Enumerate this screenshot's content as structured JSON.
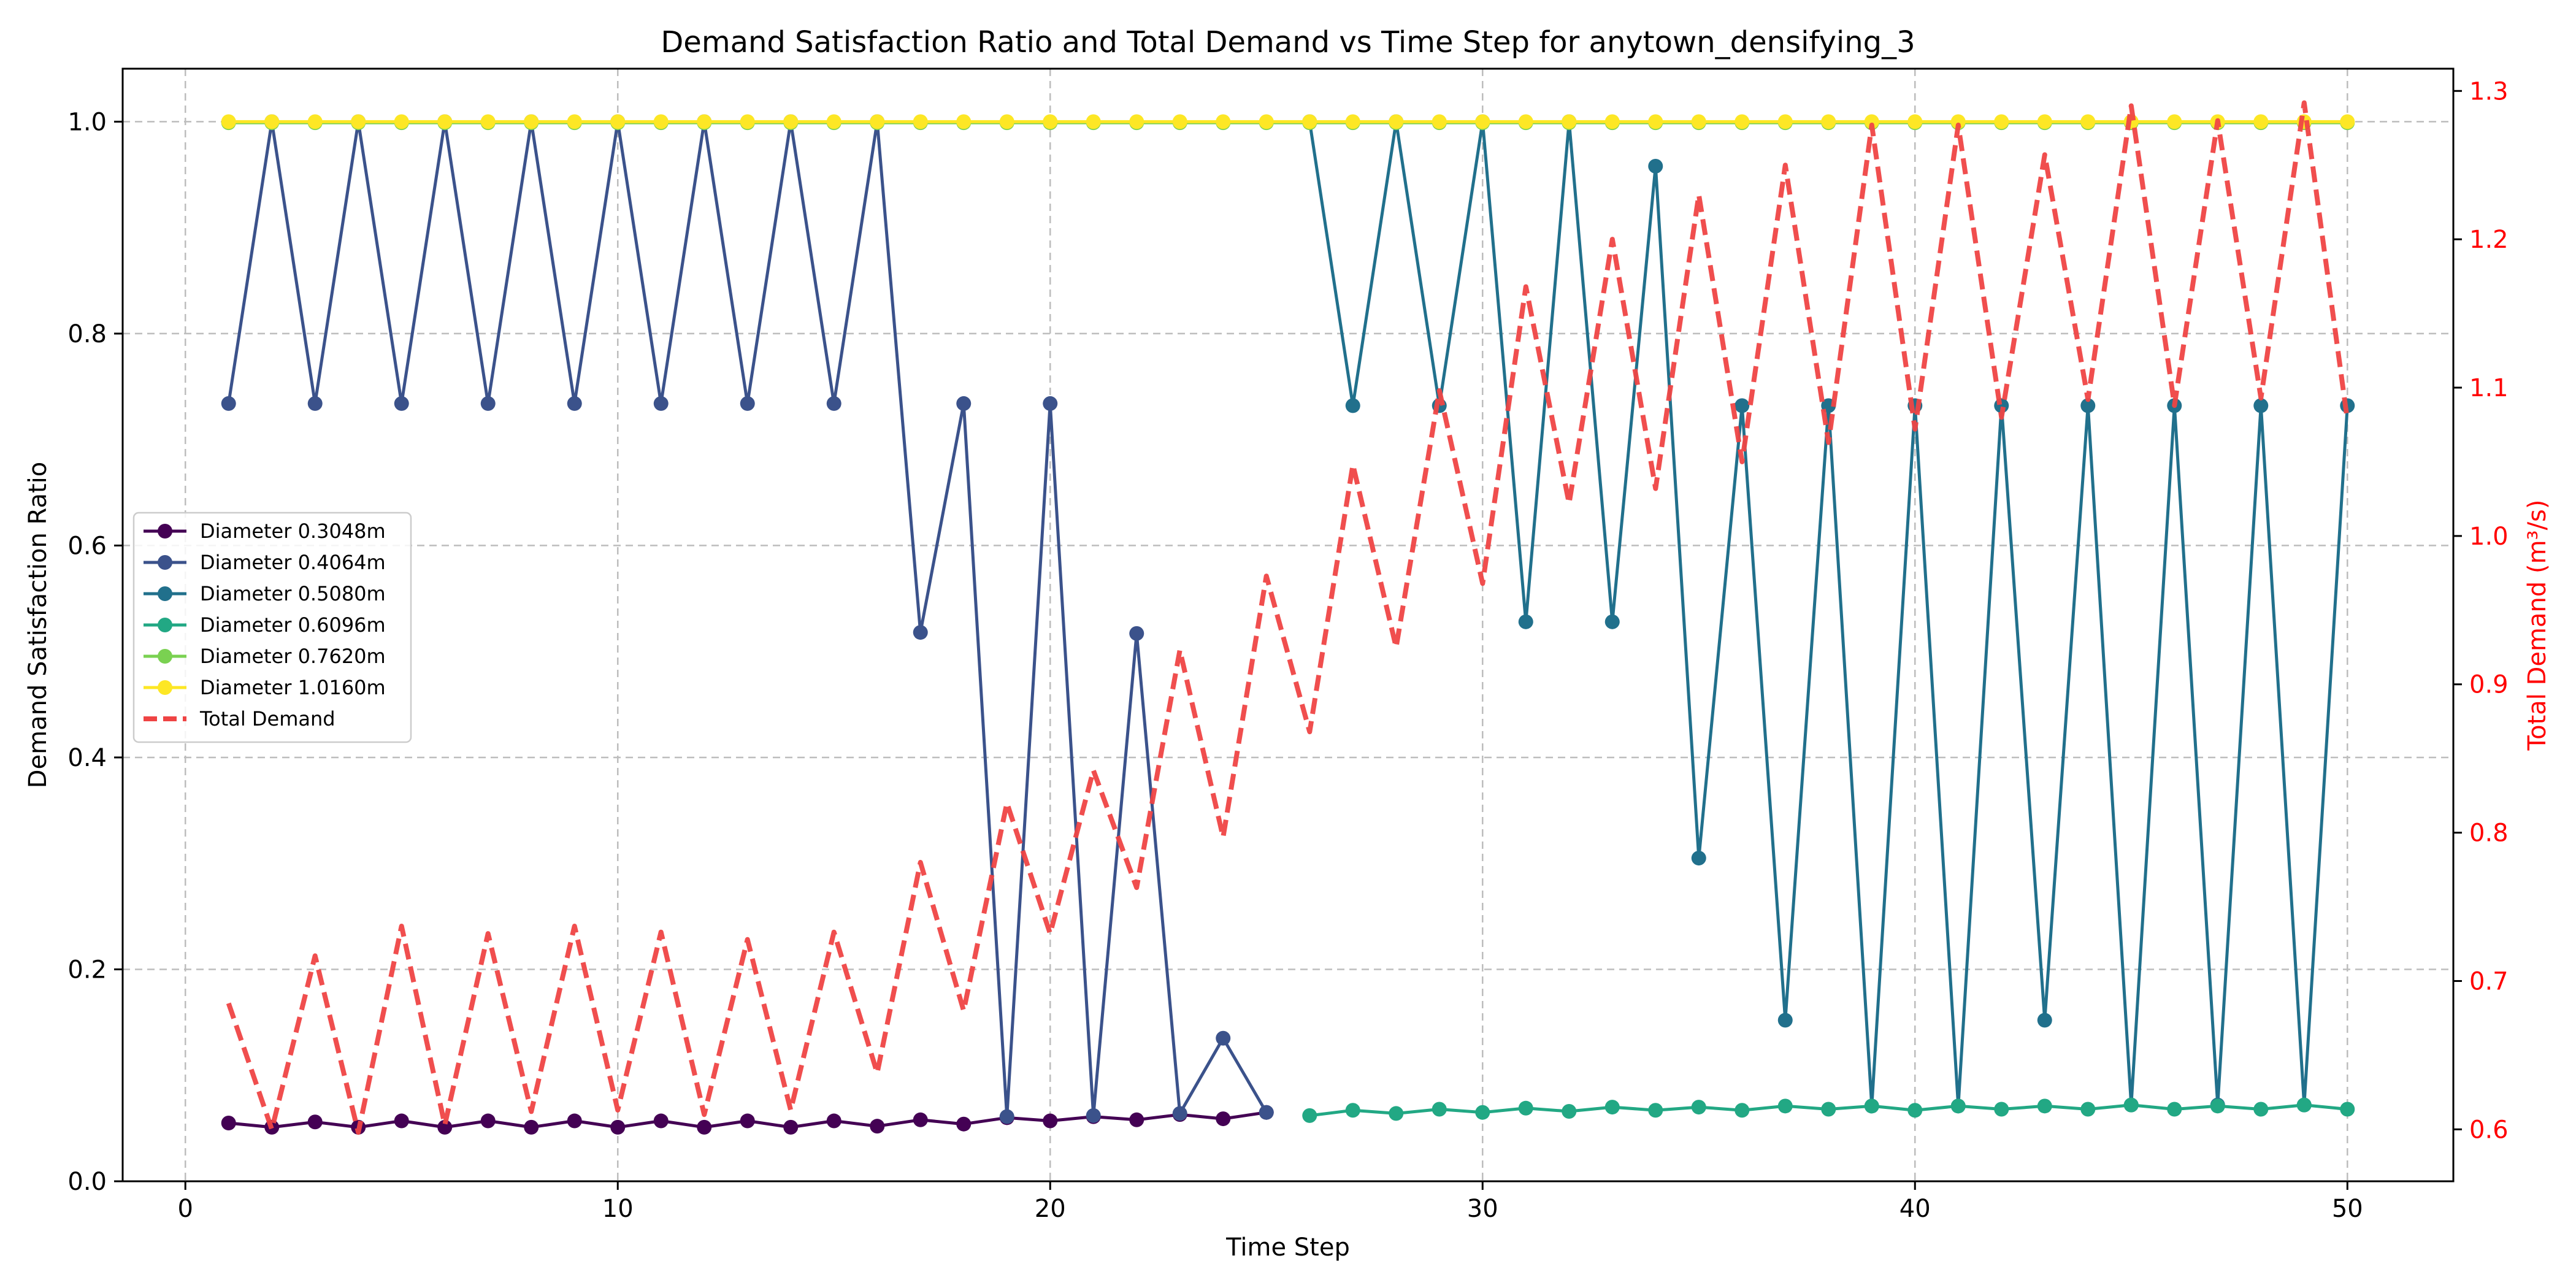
{
  "chart_data": {
    "type": "line",
    "title": "Demand Satisfaction Ratio and Total Demand vs Time Step for anytown_densifying_3",
    "xlabel": "Time Step",
    "ylabel": "Demand Satisfaction Ratio",
    "y2label": "Total Demand (m³/s)",
    "xlim": [
      -1.45,
      52.45
    ],
    "ylim": [
      0.0,
      1.05
    ],
    "y2lim": [
      0.565,
      1.315
    ],
    "xticks": [
      0,
      10,
      20,
      30,
      40,
      50
    ],
    "yticks": [
      0.0,
      0.2,
      0.4,
      0.6,
      0.8,
      1.0
    ],
    "y2ticks": [
      0.6,
      0.7,
      0.8,
      0.9,
      1.0,
      1.1,
      1.2,
      1.3
    ],
    "grid": true,
    "legend_position": "center-left",
    "x": [
      1,
      2,
      3,
      4,
      5,
      6,
      7,
      8,
      9,
      10,
      11,
      12,
      13,
      14,
      15,
      16,
      17,
      18,
      19,
      20,
      21,
      22,
      23,
      24,
      25,
      26,
      27,
      28,
      29,
      30,
      31,
      32,
      33,
      34,
      35,
      36,
      37,
      38,
      39,
      40,
      41,
      42,
      43,
      44,
      45,
      46,
      47,
      48,
      49,
      50
    ],
    "series": [
      {
        "name": "Diameter 0.3048m",
        "color": "#440154",
        "axis": "left",
        "values": [
          0.055,
          0.051,
          0.056,
          0.051,
          0.057,
          0.051,
          0.057,
          0.051,
          0.057,
          0.051,
          0.057,
          0.051,
          0.057,
          0.051,
          0.057,
          0.052,
          0.058,
          0.054,
          0.06,
          0.057,
          0.061,
          0.058,
          0.063,
          0.059,
          0.065,
          null,
          null,
          null,
          null,
          null,
          null,
          null,
          null,
          null,
          null,
          null,
          null,
          null,
          null,
          null,
          null,
          null,
          null,
          null,
          null,
          null,
          null,
          null,
          null,
          null
        ]
      },
      {
        "name": "Diameter 0.4064m",
        "color": "#3b528b",
        "axis": "left",
        "values": [
          0.734,
          1.0,
          0.734,
          1.0,
          0.734,
          1.0,
          0.734,
          1.0,
          0.734,
          1.0,
          0.734,
          1.0,
          0.734,
          1.0,
          0.734,
          1.0,
          0.518,
          0.734,
          0.061,
          0.734,
          0.062,
          0.517,
          0.064,
          0.135,
          0.065,
          null,
          null,
          null,
          null,
          null,
          null,
          null,
          null,
          null,
          null,
          null,
          null,
          null,
          null,
          null,
          null,
          null,
          null,
          null,
          null,
          null,
          null,
          null,
          null,
          null
        ]
      },
      {
        "name": "Diameter 0.5080m",
        "color": "#21708c",
        "axis": "left",
        "values": [
          null,
          null,
          null,
          null,
          null,
          null,
          null,
          null,
          null,
          null,
          null,
          null,
          null,
          null,
          null,
          null,
          null,
          null,
          null,
          null,
          null,
          null,
          null,
          null,
          null,
          1.0,
          0.732,
          1.0,
          0.732,
          1.0,
          0.528,
          1.0,
          0.528,
          0.958,
          0.305,
          0.732,
          0.152,
          0.732,
          0.071,
          0.732,
          0.071,
          0.732,
          0.152,
          0.732,
          0.072,
          0.732,
          0.072,
          0.732,
          0.072,
          0.732
        ]
      },
      {
        "name": "Diameter 0.6096m",
        "color": "#22a884",
        "axis": "left",
        "values": [
          null,
          null,
          null,
          null,
          null,
          null,
          null,
          null,
          null,
          null,
          null,
          null,
          null,
          null,
          null,
          null,
          null,
          null,
          null,
          null,
          null,
          null,
          null,
          null,
          null,
          0.062,
          0.067,
          0.064,
          0.068,
          0.065,
          0.069,
          0.066,
          0.07,
          0.067,
          0.07,
          0.067,
          0.071,
          0.068,
          0.071,
          0.067,
          0.071,
          0.068,
          0.071,
          0.068,
          0.072,
          0.068,
          0.071,
          0.068,
          0.072,
          0.068
        ]
      },
      {
        "name": "Diameter 0.7620m",
        "color": "#7ad151",
        "axis": "left",
        "values": [
          0.999,
          0.999,
          0.999,
          0.999,
          0.999,
          0.999,
          0.999,
          0.999,
          0.999,
          0.999,
          0.999,
          0.999,
          0.999,
          0.999,
          0.999,
          0.999,
          0.999,
          0.999,
          0.999,
          0.999,
          0.999,
          0.999,
          0.999,
          0.999,
          0.999,
          0.999,
          0.999,
          0.999,
          0.999,
          0.999,
          0.999,
          0.999,
          0.999,
          0.999,
          0.999,
          0.999,
          0.999,
          0.999,
          0.999,
          0.999,
          0.999,
          0.999,
          0.999,
          0.999,
          0.999,
          0.999,
          0.999,
          0.999,
          0.999,
          0.999
        ]
      },
      {
        "name": "Diameter 1.0160m",
        "color": "#fde725",
        "axis": "left",
        "values": [
          1.0,
          1.0,
          1.0,
          1.0,
          1.0,
          1.0,
          1.0,
          1.0,
          1.0,
          1.0,
          1.0,
          1.0,
          1.0,
          1.0,
          1.0,
          1.0,
          1.0,
          1.0,
          1.0,
          1.0,
          1.0,
          1.0,
          1.0,
          1.0,
          1.0,
          1.0,
          1.0,
          1.0,
          1.0,
          1.0,
          1.0,
          1.0,
          1.0,
          1.0,
          1.0,
          1.0,
          1.0,
          1.0,
          1.0,
          1.0,
          1.0,
          1.0,
          1.0,
          1.0,
          1.0,
          1.0,
          1.0,
          1.0,
          1.0,
          1.0
        ]
      },
      {
        "name": "Total Demand",
        "color": "#ef4444",
        "axis": "right",
        "dashed": true,
        "values": [
          0.685,
          0.6,
          0.717,
          0.598,
          0.737,
          0.603,
          0.732,
          0.612,
          0.737,
          0.613,
          0.733,
          0.61,
          0.728,
          0.613,
          0.733,
          0.638,
          0.78,
          0.68,
          0.82,
          0.732,
          0.842,
          0.763,
          0.923,
          0.797,
          0.973,
          0.868,
          1.048,
          0.925,
          1.098,
          0.968,
          1.168,
          1.022,
          1.2,
          1.032,
          1.23,
          1.05,
          1.25,
          1.063,
          1.277,
          1.072,
          1.277,
          1.08,
          1.257,
          1.092,
          1.29,
          1.088,
          1.28,
          1.093,
          1.292,
          1.078
        ]
      }
    ]
  }
}
